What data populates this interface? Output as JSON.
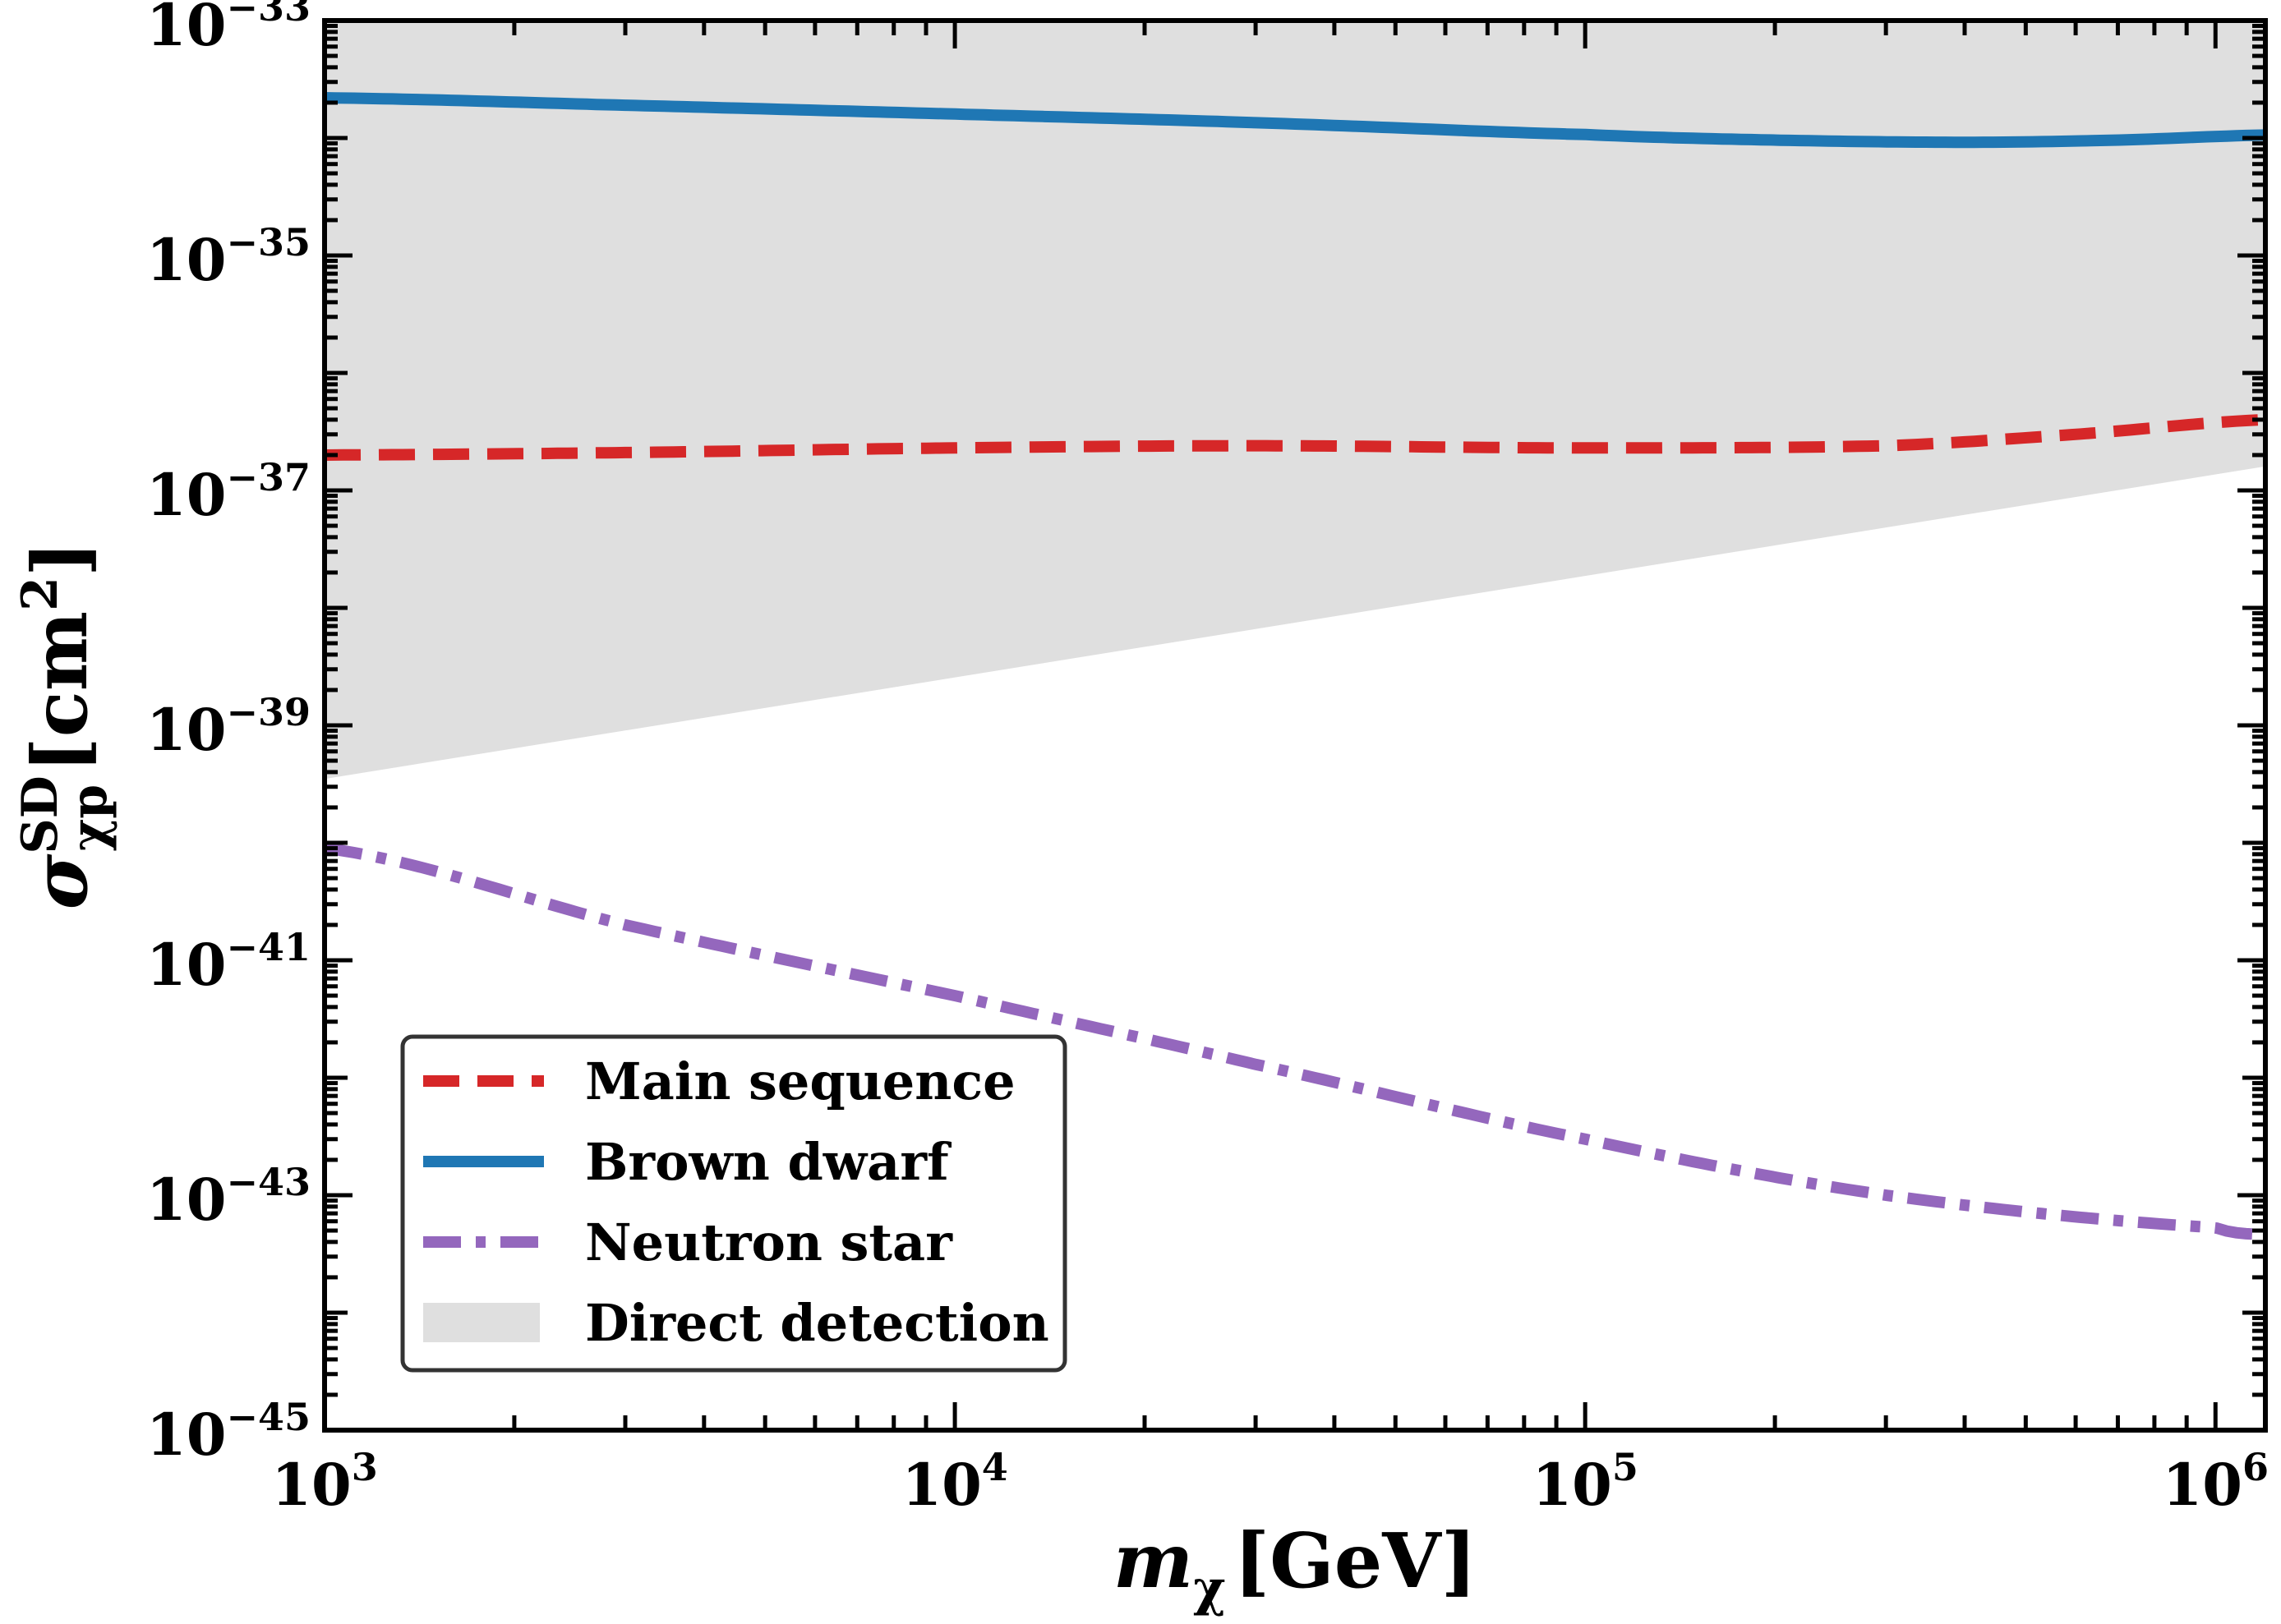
{
  "chart_data": {
    "type": "line",
    "title": "",
    "xlabel": "m_χ [GeV]",
    "ylabel": "σ^SD_χp [cm^2]",
    "xscale": "log",
    "yscale": "log",
    "xlim": [
      1000,
      1200000
    ],
    "ylim": [
      1e-45,
      1e-33
    ],
    "x_ticks": [
      {
        "value": 1000,
        "base": "10",
        "exp": "3"
      },
      {
        "value": 10000,
        "base": "10",
        "exp": "4"
      },
      {
        "value": 100000,
        "base": "10",
        "exp": "5"
      },
      {
        "value": 1000000,
        "base": "10",
        "exp": "6"
      }
    ],
    "y_ticks": [
      {
        "value": 1e-33,
        "base": "10",
        "exp": "−33"
      },
      {
        "value": 1e-35,
        "base": "10",
        "exp": "−35"
      },
      {
        "value": 1e-37,
        "base": "10",
        "exp": "−37"
      },
      {
        "value": 1e-39,
        "base": "10",
        "exp": "−39"
      },
      {
        "value": 1e-41,
        "base": "10",
        "exp": "−41"
      },
      {
        "value": 1e-43,
        "base": "10",
        "exp": "−43"
      },
      {
        "value": 1e-45,
        "base": "10",
        "exp": "−45"
      }
    ],
    "legend_position": "lower-left",
    "series": [
      {
        "name": "Main sequence",
        "style": "dashed",
        "color": "#d62728",
        "x": [
          1000,
          3000,
          10000,
          30000,
          100000,
          300000,
          600000,
          1200000
        ],
        "y": [
          2e-37,
          2.1e-37,
          2.3e-37,
          2.4e-37,
          2.3e-37,
          2.4e-37,
          3e-37,
          4e-37
        ]
      },
      {
        "name": "Brown dwarf",
        "style": "solid",
        "color": "#1f77b4",
        "x": [
          1000,
          3000,
          10000,
          30000,
          100000,
          200000,
          400000,
          700000,
          1200000
        ],
        "y": [
          2.2e-34,
          1.9e-34,
          1.6e-34,
          1.35e-34,
          1.07e-34,
          9.6e-35,
          9.2e-35,
          9.6e-35,
          1.06e-34
        ]
      },
      {
        "name": "Neutron star",
        "style": "dashdot",
        "color": "#9467bd",
        "x": [
          1000,
          3000,
          10000,
          30000,
          100000,
          300000,
          1000000,
          1200000
        ],
        "y": [
          9e-41,
          2e-41,
          5e-42,
          1.3e-42,
          3e-43,
          1e-43,
          5.3e-44,
          4.6e-44
        ]
      }
    ],
    "shaded_region": {
      "name": "Direct detection",
      "color": "#dfdfdf",
      "upper": 1e-33,
      "lower_x": [
        1000,
        1200000
      ],
      "lower_y": [
        3.5e-40,
        1.6e-37
      ]
    }
  }
}
